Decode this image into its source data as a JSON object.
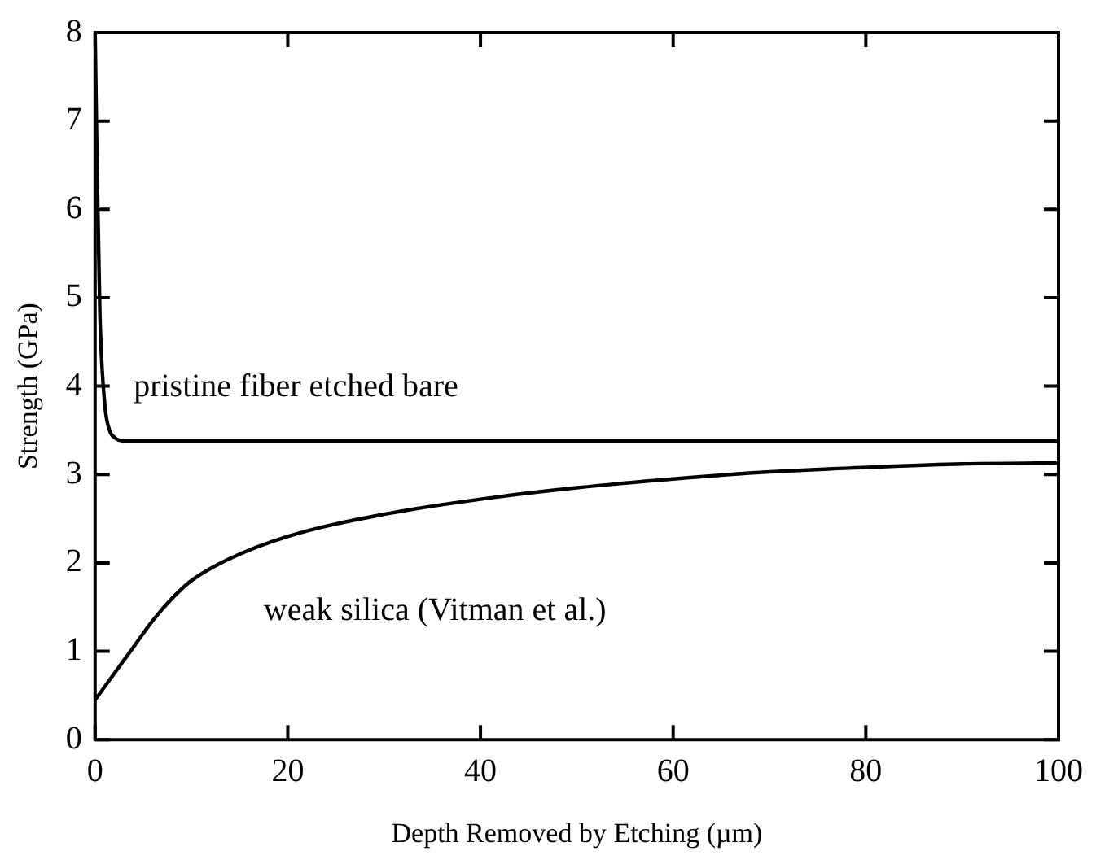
{
  "chart_data": {
    "type": "line",
    "xlabel": "Depth Removed by Etching (µm)",
    "ylabel": "Strength (GPa)",
    "xlim": [
      0,
      100
    ],
    "xticks": [
      0,
      20,
      40,
      60,
      80,
      100
    ],
    "ylim": [
      0,
      8
    ],
    "yticks": [
      0,
      1,
      2,
      3,
      4,
      5,
      6,
      7,
      8
    ],
    "grid": false,
    "legend": false,
    "marker": "none",
    "line_style": "solid",
    "series": [
      {
        "name": "pristine fiber etched bare",
        "color": "#000000",
        "x": [
          0,
          0.2,
          0.5,
          1,
          1.5,
          2,
          3,
          100
        ],
        "values": [
          8,
          6.5,
          4.8,
          3.8,
          3.5,
          3.42,
          3.38,
          3.38
        ]
      },
      {
        "name": "weak silica (Vitman et al.)",
        "color": "#000000",
        "x": [
          0,
          2,
          4,
          6,
          8,
          10,
          14,
          20,
          30,
          40,
          50,
          60,
          70,
          80,
          90,
          100
        ],
        "values": [
          0.45,
          0.75,
          1.05,
          1.35,
          1.6,
          1.8,
          2.05,
          2.3,
          2.55,
          2.72,
          2.85,
          2.95,
          3.03,
          3.08,
          3.12,
          3.13
        ]
      }
    ]
  }
}
